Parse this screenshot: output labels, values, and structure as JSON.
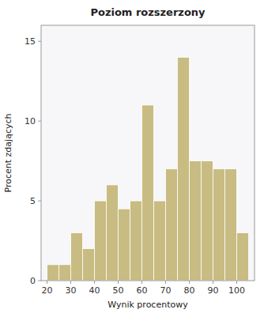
{
  "chart_data": {
    "type": "histogram",
    "title": "Poziom rozszerzony",
    "xlabel": "Wynik procentowy",
    "ylabel": "Procent zdających",
    "bins": [
      20,
      25,
      30,
      35,
      40,
      45,
      50,
      55,
      60,
      65,
      70,
      75,
      80,
      85,
      90,
      95,
      100,
      105
    ],
    "values": [
      1,
      1,
      3,
      2,
      5,
      6,
      4.5,
      5,
      11,
      5,
      7,
      14,
      7.5,
      7.5,
      7,
      7,
      3
    ],
    "color": "#C8BC82",
    "xlim": [
      17.5,
      107.5
    ],
    "ylim": [
      0,
      16
    ],
    "xticks": [
      20,
      30,
      40,
      50,
      60,
      70,
      80,
      90,
      100
    ],
    "yticks": [
      0,
      5,
      10,
      15
    ],
    "grid": false
  }
}
